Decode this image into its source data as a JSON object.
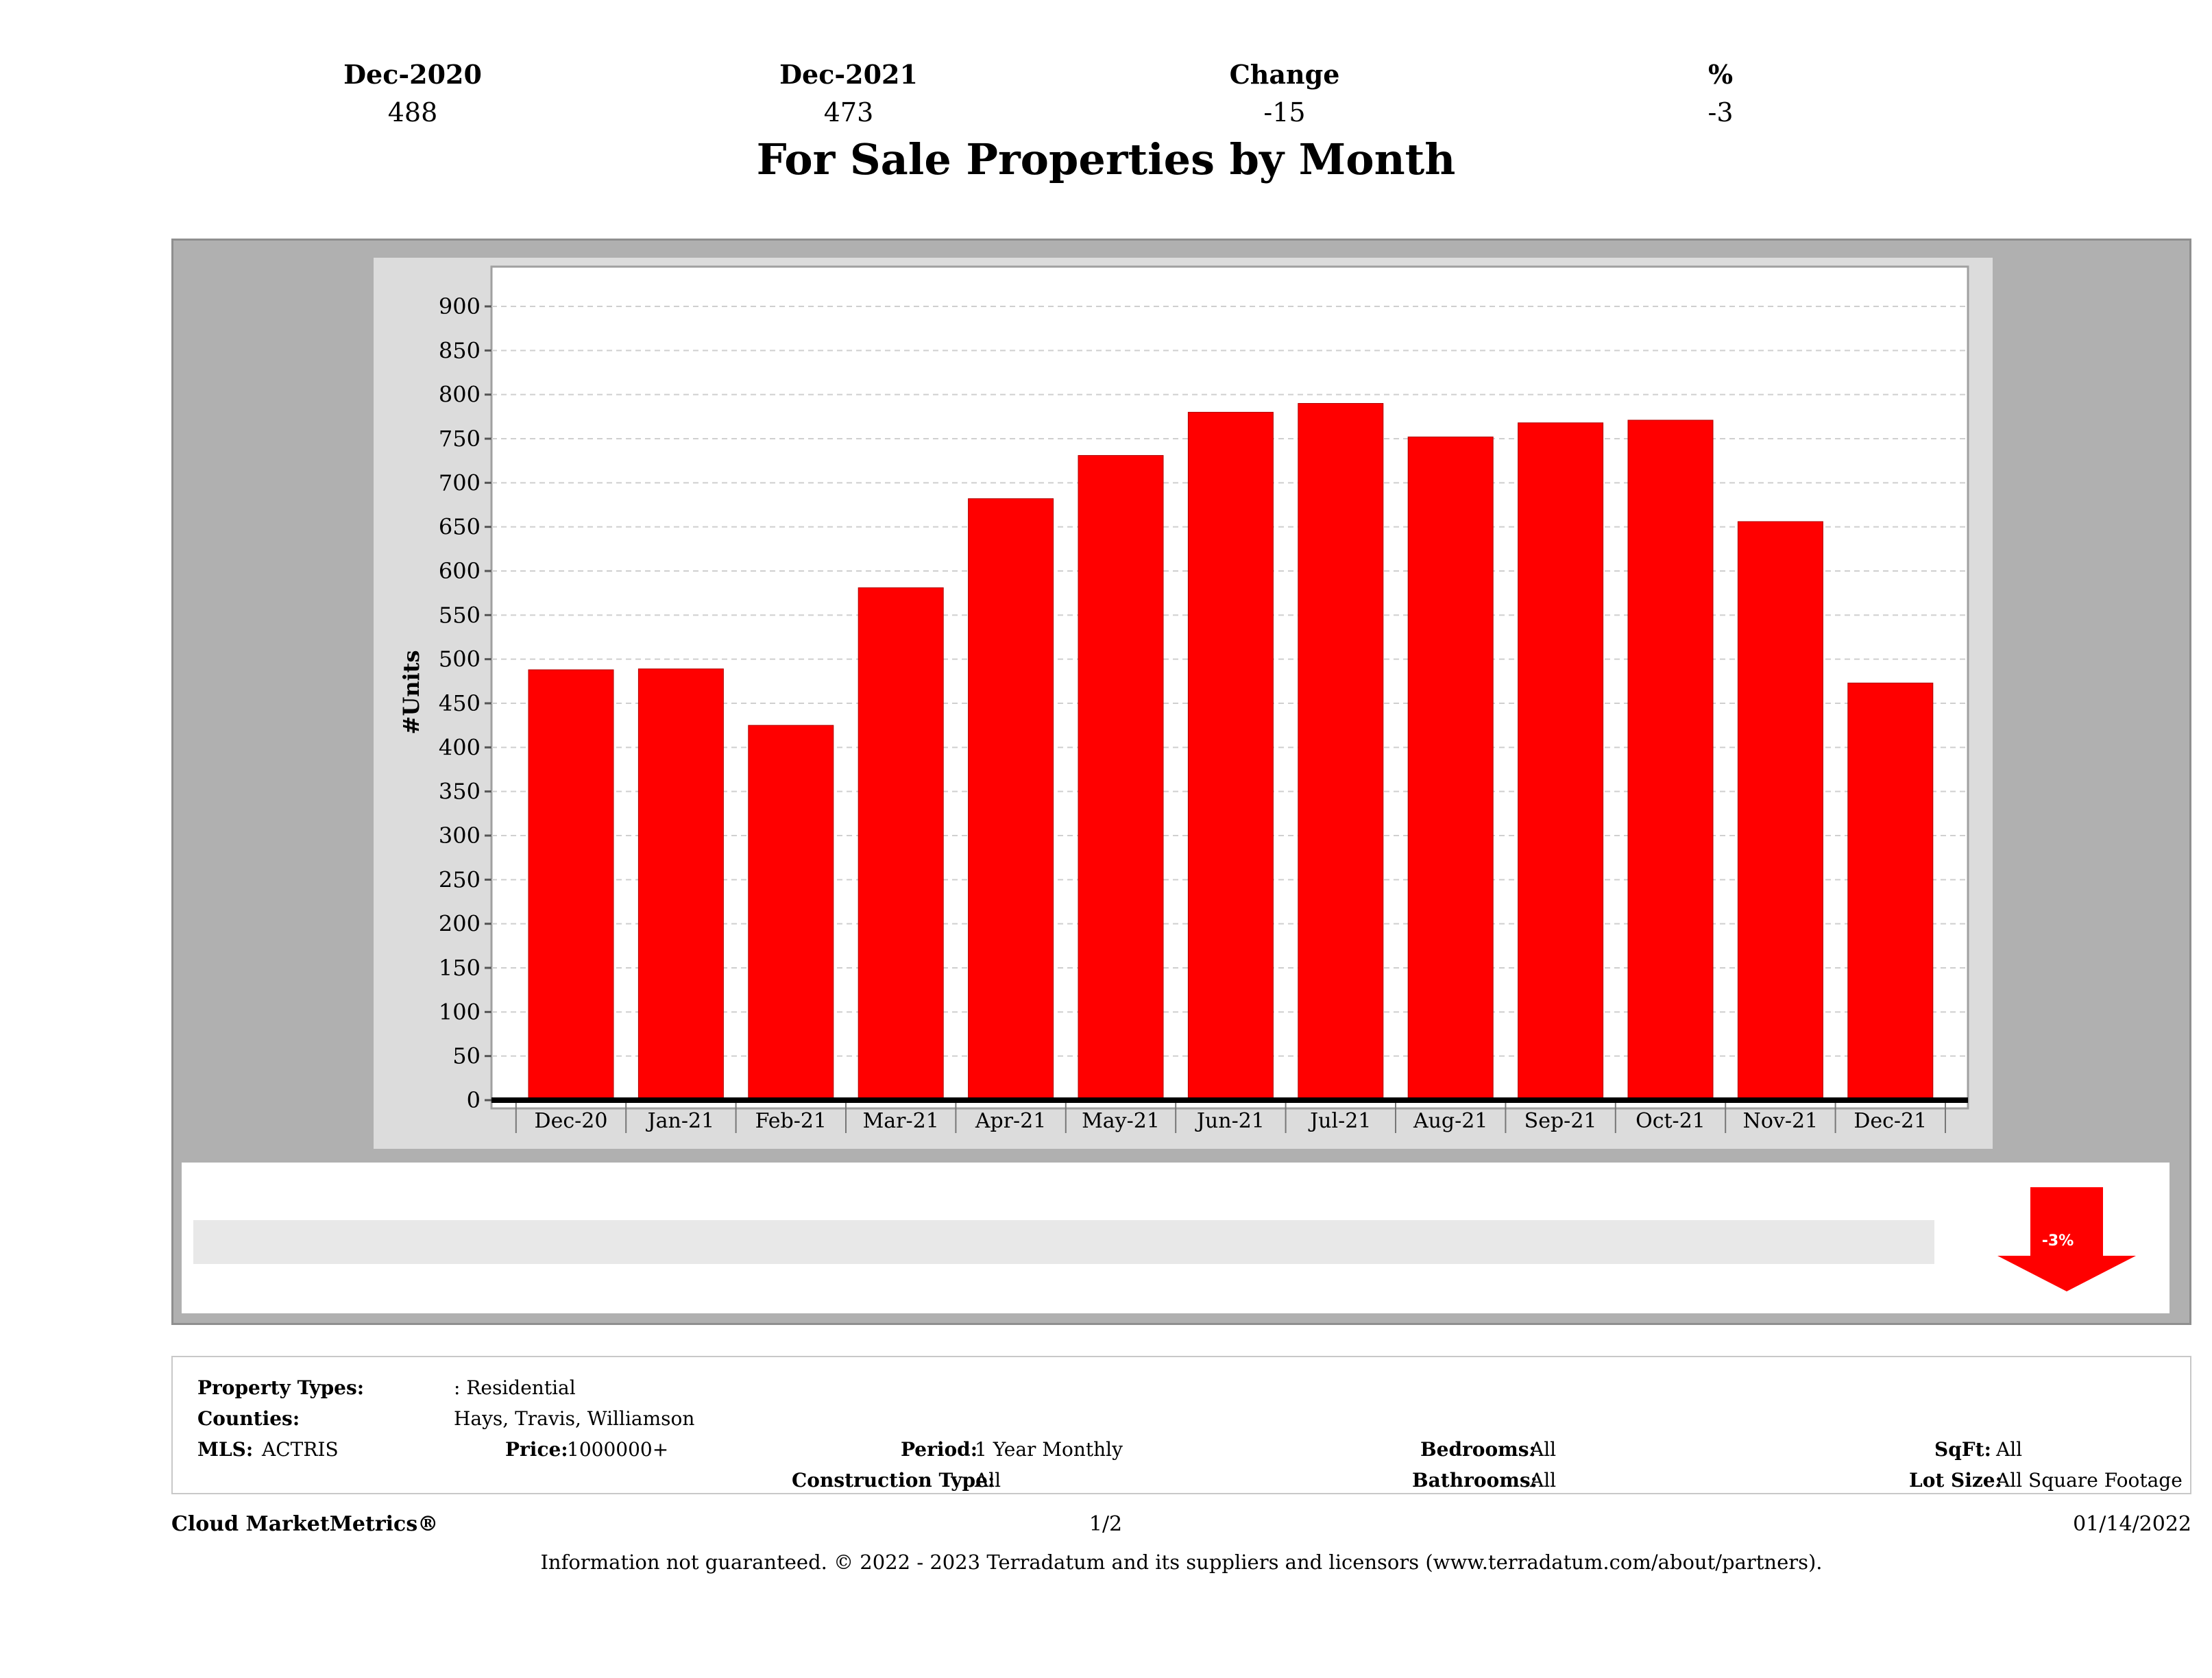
{
  "title": "For Sale Properties by Month",
  "chart_data": {
    "type": "bar",
    "categories": [
      "Dec-20",
      "Jan-21",
      "Feb-21",
      "Mar-21",
      "Apr-21",
      "May-21",
      "Jun-21",
      "Jul-21",
      "Aug-21",
      "Sep-21",
      "Oct-21",
      "Nov-21",
      "Dec-21"
    ],
    "values": [
      488,
      489,
      425,
      581,
      682,
      731,
      780,
      790,
      752,
      768,
      771,
      656,
      473
    ],
    "ylabel": "#Units",
    "xlabel": "",
    "ylim": [
      0,
      950
    ],
    "yticks": [
      0,
      50,
      100,
      150,
      200,
      250,
      300,
      350,
      400,
      450,
      500,
      550,
      600,
      650,
      700,
      750,
      800,
      850,
      900
    ],
    "bar_color": "#ff0000",
    "grid": true
  },
  "summary": {
    "headers": [
      "Dec-2020",
      "Dec-2021",
      "Change",
      "%"
    ],
    "values": [
      "488",
      "473",
      "-15",
      "-3"
    ],
    "badge": "-3%",
    "badge_color": "#ff0000"
  },
  "filters": {
    "property_types_label": "Property Types:",
    "property_types_value": ": Residential",
    "counties_label": "Counties:",
    "counties_value": "Hays, Travis, Williamson",
    "mls_label": "MLS:",
    "mls_value": "ACTRIS",
    "price_label": "Price:",
    "price_value": "1000000+",
    "period_label": "Period:",
    "period_value": "1 Year Monthly",
    "construction_label": "Construction Type:",
    "construction_value": "All",
    "bedrooms_label": "Bedrooms:",
    "bedrooms_value": "All",
    "bathrooms_label": "Bathrooms:",
    "bathrooms_value": "All",
    "sqft_label": "SqFt:",
    "sqft_value": "All",
    "lot_label": "Lot Size:",
    "lot_value": "All Square Footage"
  },
  "footer": {
    "brand": "Cloud MarketMetrics®",
    "page": "1/2",
    "date": "01/14/2022",
    "disclaimer": "Information not guaranteed. © 2022 - 2023 Terradatum and its suppliers and licensors (www.terradatum.com/about/partners)."
  }
}
